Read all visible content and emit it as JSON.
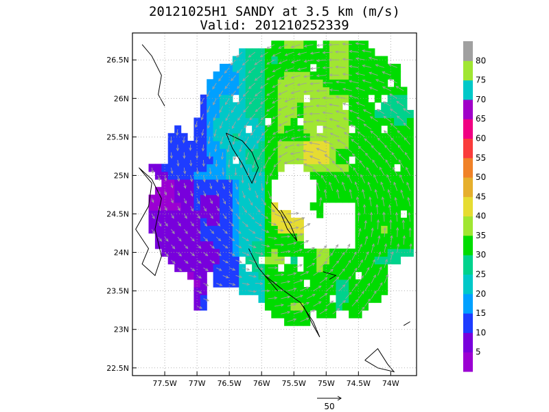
{
  "chart_data": {
    "type": "heatmap",
    "title": "20121025H1 SANDY at 3.5 km (m/s)",
    "subtitle": "Valid: 201210252339",
    "x_ticks": [
      {
        "value": -77.5,
        "label": "77.5W"
      },
      {
        "value": -77.0,
        "label": "77W"
      },
      {
        "value": -76.5,
        "label": "76.5W"
      },
      {
        "value": -76.0,
        "label": "76W"
      },
      {
        "value": -75.5,
        "label": "75.5W"
      },
      {
        "value": -75.0,
        "label": "75W"
      },
      {
        "value": -74.5,
        "label": "74.5W"
      },
      {
        "value": -74.0,
        "label": "74W"
      }
    ],
    "y_ticks": [
      {
        "value": 22.5,
        "label": "22.5N"
      },
      {
        "value": 23.0,
        "label": "23N"
      },
      {
        "value": 23.5,
        "label": "23.5N"
      },
      {
        "value": 24.0,
        "label": "24N"
      },
      {
        "value": 24.5,
        "label": "24.5N"
      },
      {
        "value": 25.0,
        "label": "25N"
      },
      {
        "value": 25.5,
        "label": "25.5N"
      },
      {
        "value": 26.0,
        "label": "26N"
      },
      {
        "value": 26.5,
        "label": "26.5N"
      }
    ],
    "xlim": [
      -78.0,
      -73.6
    ],
    "ylim": [
      22.4,
      26.85
    ],
    "grid": true,
    "storm_center": {
      "lon": -75.55,
      "lat": 24.75
    },
    "colorbar": {
      "placement": "right",
      "levels": [
        {
          "label": "",
          "color": "#9b00d2"
        },
        {
          "label": "5",
          "color": "#7800dc"
        },
        {
          "label": "10",
          "color": "#1e3cff"
        },
        {
          "label": "15",
          "color": "#00a0ff"
        },
        {
          "label": "20",
          "color": "#00c8c8"
        },
        {
          "label": "25",
          "color": "#00d28c"
        },
        {
          "label": "30",
          "color": "#00dc00"
        },
        {
          "label": "35",
          "color": "#a0e632"
        },
        {
          "label": "40",
          "color": "#e6dc32"
        },
        {
          "label": "45",
          "color": "#e6af2d"
        },
        {
          "label": "50",
          "color": "#f08228"
        },
        {
          "label": "55",
          "color": "#fa3c3c"
        },
        {
          "label": "60",
          "color": "#f00082"
        },
        {
          "label": "65",
          "color": "#a000c8"
        },
        {
          "label": "70",
          "color": "#00c8c8"
        },
        {
          "label": "75",
          "color": "#a0e632"
        },
        {
          "label": "80",
          "color": "#a0a0a0"
        }
      ]
    },
    "reference_vector": {
      "value": 50,
      "label": "50"
    },
    "vector_color": "#a0a0a0"
  }
}
